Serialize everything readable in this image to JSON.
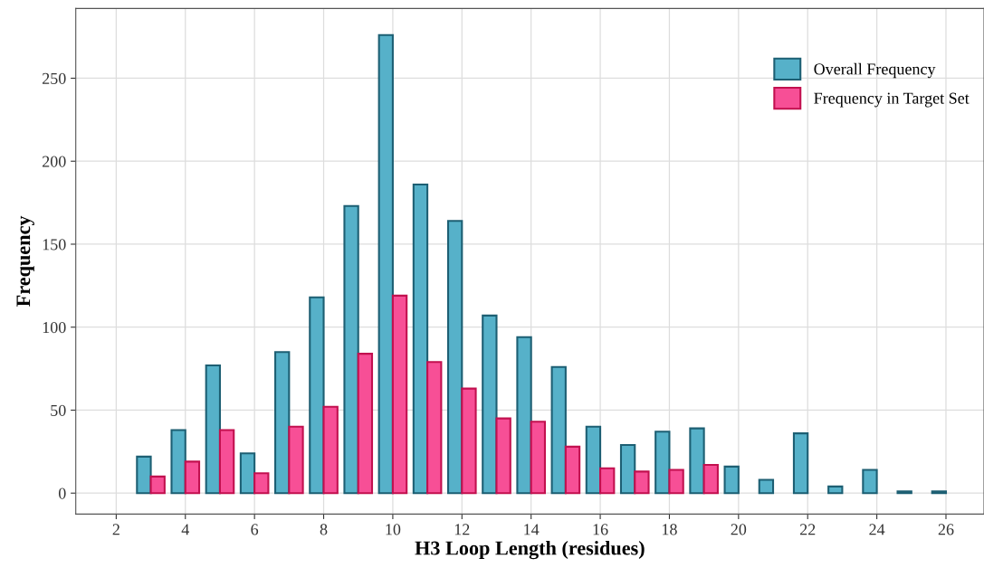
{
  "chart_data": {
    "type": "bar",
    "xlabel": "H3 Loop Length (residues)",
    "ylabel": "Frequency",
    "x": [
      3,
      4,
      5,
      6,
      7,
      8,
      9,
      10,
      11,
      12,
      13,
      14,
      15,
      16,
      17,
      18,
      19,
      20,
      21,
      22,
      23,
      24,
      25,
      26
    ],
    "series": [
      {
        "name": "Overall Frequency",
        "color": "#56b1c9",
        "values": [
          22,
          38,
          77,
          24,
          85,
          118,
          173,
          276,
          186,
          164,
          107,
          94,
          76,
          40,
          29,
          37,
          39,
          16,
          8,
          36,
          4,
          14,
          1,
          1
        ]
      },
      {
        "name": "Frequency in Target Set",
        "color": "#f74f96",
        "values": [
          10,
          19,
          38,
          12,
          40,
          52,
          84,
          119,
          79,
          63,
          45,
          43,
          28,
          15,
          13,
          14,
          17,
          null,
          null,
          null,
          null,
          null,
          null,
          null
        ]
      }
    ],
    "xlim": [
      0.83,
      27.1
    ],
    "xticks": [
      2,
      4,
      6,
      8,
      10,
      12,
      14,
      16,
      18,
      20,
      22,
      24,
      26
    ],
    "ylim": [
      -12.6,
      292
    ],
    "yticks": [
      0,
      50,
      100,
      150,
      200,
      250
    ],
    "grid": true,
    "legend": "top right"
  }
}
